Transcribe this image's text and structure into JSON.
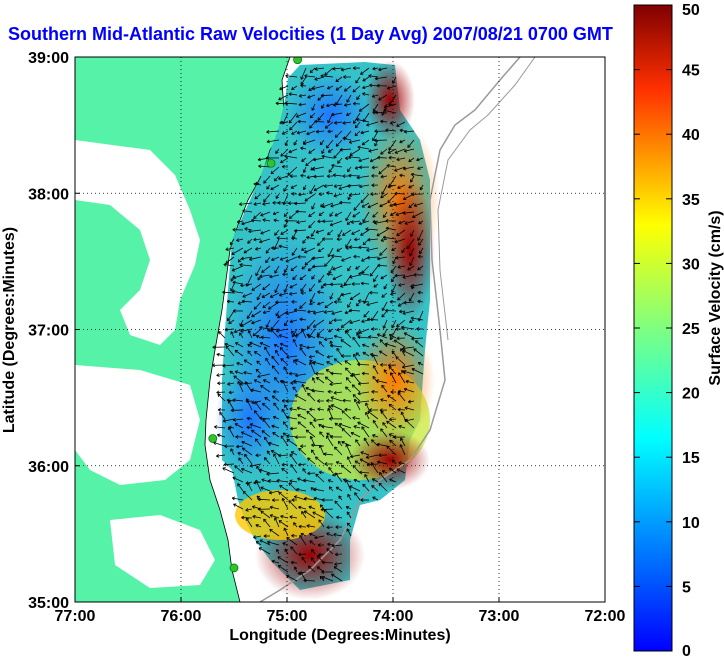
{
  "title": "Southern Mid-Atlantic Raw Velocities (1 Day Avg) 2007/08/21 0700 GMT",
  "colors": {
    "title": "#0000ff",
    "land": "#55f2a8",
    "coast_line": "#000000",
    "bathymetry": "#9a9a9a",
    "station": "#2ec42e",
    "arrows": "#000000",
    "grid": "#000000"
  },
  "map": {
    "xlabel": "Longitude (Degrees:Minutes)",
    "ylabel": "Latitude (Degrees:Minutes)",
    "lon_range": [
      -77,
      -72
    ],
    "lat_range": [
      35,
      39
    ],
    "x_ticks": [
      {
        "value": -77,
        "label": "77:00"
      },
      {
        "value": -76,
        "label": "76:00"
      },
      {
        "value": -75,
        "label": "75:00"
      },
      {
        "value": -74,
        "label": "74:00"
      },
      {
        "value": -73,
        "label": "73:00"
      },
      {
        "value": -72,
        "label": "72:00"
      }
    ],
    "y_ticks": [
      {
        "value": 35,
        "label": "35:00"
      },
      {
        "value": 36,
        "label": "36:00"
      },
      {
        "value": 37,
        "label": "37:00"
      },
      {
        "value": 38,
        "label": "38:00"
      },
      {
        "value": 39,
        "label": "39:00"
      }
    ],
    "grid": "dotted",
    "stations": [
      {
        "lon": -74.9,
        "lat": 38.98
      },
      {
        "lon": -75.15,
        "lat": 38.22
      },
      {
        "lon": -75.7,
        "lat": 36.2
      },
      {
        "lon": -75.5,
        "lat": 35.25
      }
    ]
  },
  "colorbar": {
    "label": "Surface Velocity (cm/s)",
    "min": 0,
    "max": 50,
    "ticks": [
      0,
      5,
      10,
      15,
      20,
      25,
      30,
      35,
      40,
      45,
      50
    ],
    "colormap": "jet"
  }
}
